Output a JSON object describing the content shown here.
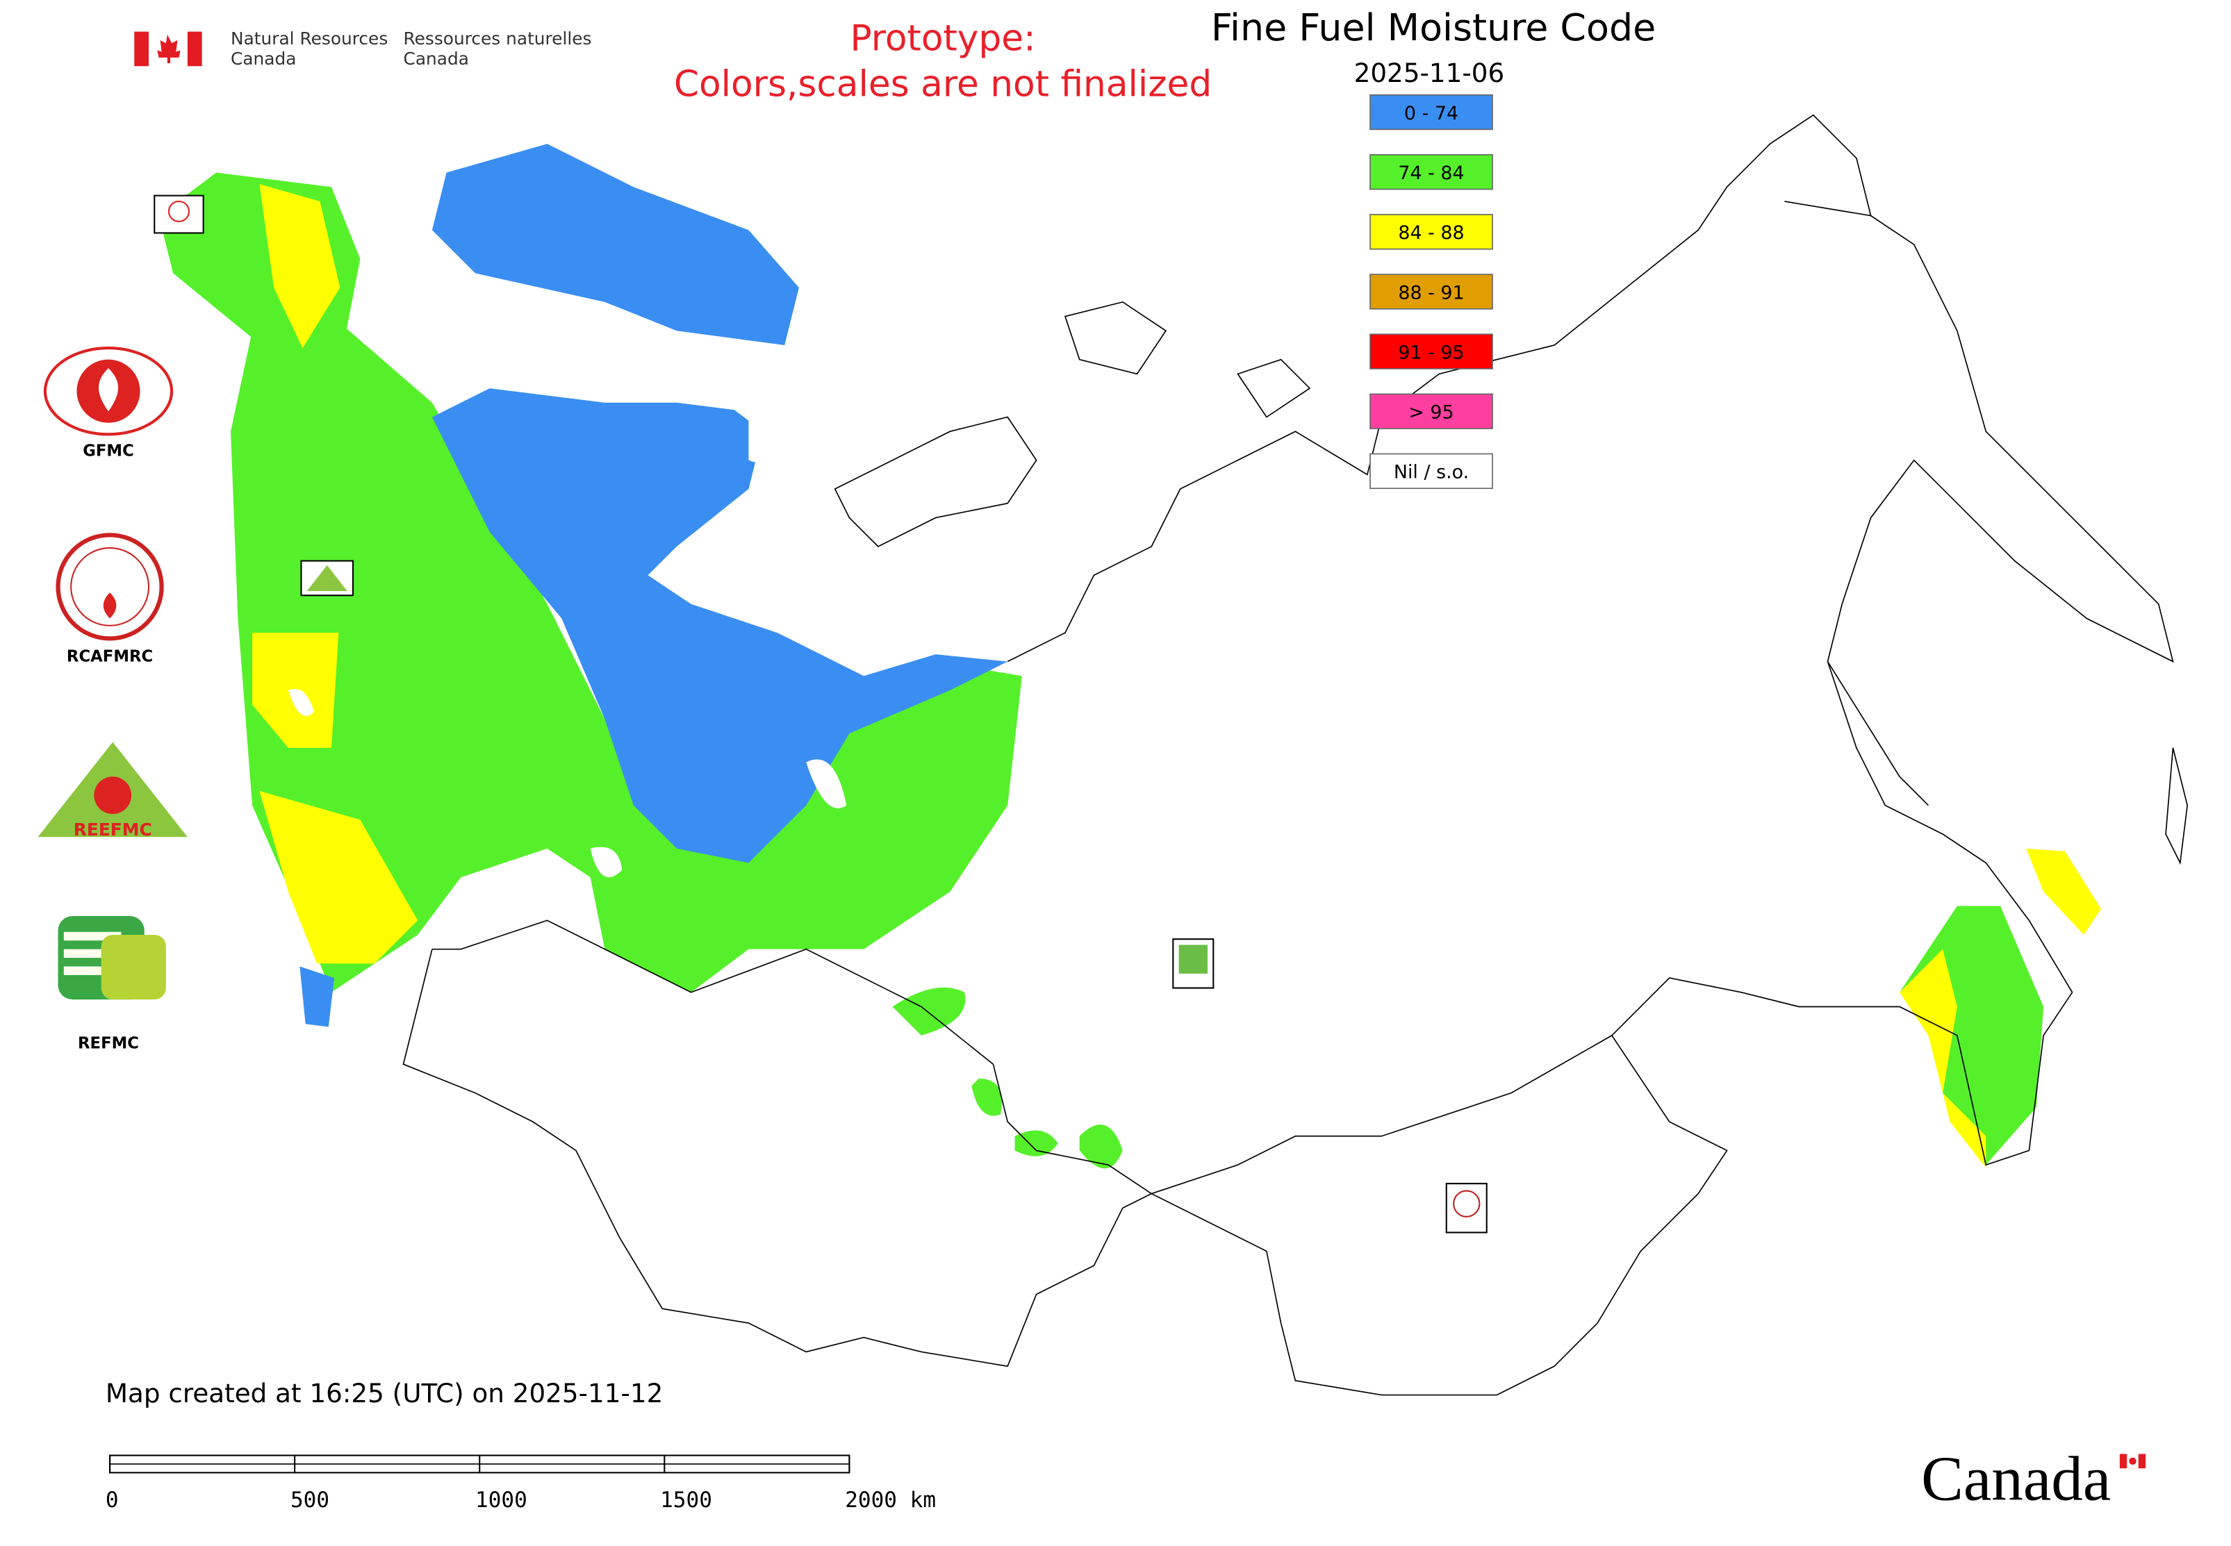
{
  "header": {
    "department_en": [
      "Natural Resources",
      "Canada"
    ],
    "department_fr": [
      "Ressources naturelles",
      "Canada"
    ]
  },
  "notice": [
    "Prototype:",
    "Colors,scales are not finalized"
  ],
  "map": {
    "title": "Fine Fuel Moisture Code",
    "date": "2025-11-06",
    "legend": [
      {
        "label": "0 - 74",
        "color": "#3a8ef2"
      },
      {
        "label": "74 - 84",
        "color": "#55f02a"
      },
      {
        "label": "84 - 88",
        "color": "#ffff00"
      },
      {
        "label": "88 - 91",
        "color": "#e09e00"
      },
      {
        "label": "91 - 95",
        "color": "#ff0000"
      },
      {
        "label": "> 95",
        "color": "#ff3fa0"
      },
      {
        "label": "Nil / s.o.",
        "color": "#ffffff"
      }
    ],
    "logos": [
      "GFMC",
      "RCAFMRC",
      "REEFMC",
      "REFMC"
    ],
    "footer": "Map created at 16:25 (UTC) on 2025-11-12",
    "scale_bar": [
      "0",
      "500",
      "1000",
      "1500",
      "2000 km"
    ],
    "wordmark": "Canada"
  }
}
